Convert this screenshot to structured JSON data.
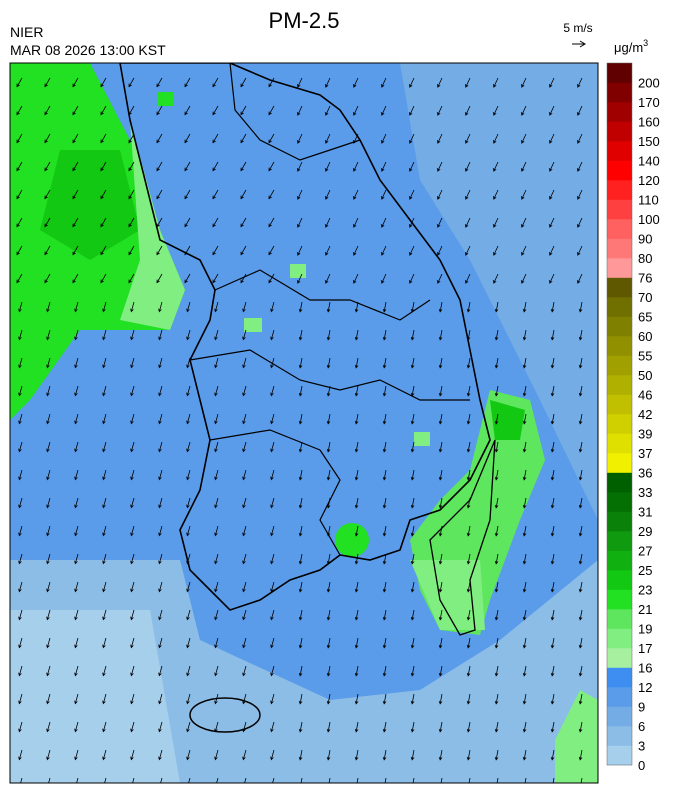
{
  "header": {
    "org": "NIER",
    "datetime": "MAR 08 2026 13:00 KST",
    "title": "PM-2.5",
    "wind_scale": "5 m/s",
    "unit": {
      "base": "μg/m",
      "exponent": "3"
    }
  },
  "colorbar": {
    "labels": [
      0,
      3,
      6,
      9,
      12,
      16,
      17,
      19,
      21,
      23,
      25,
      27,
      29,
      31,
      33,
      36,
      37,
      39,
      42,
      46,
      50,
      55,
      60,
      65,
      70,
      76,
      80,
      90,
      100,
      110,
      120,
      140,
      150,
      160,
      170,
      200
    ],
    "colors": [
      "#a6cfec",
      "#8cbde6",
      "#74ade6",
      "#5a9cea",
      "#3d8ef0",
      "#a6f0a0",
      "#80ee80",
      "#5ee65e",
      "#22e022",
      "#12c812",
      "#10b010",
      "#109a10",
      "#0a820a",
      "#047004",
      "#006000",
      "#f0f000",
      "#e0e000",
      "#d0d000",
      "#c0c000",
      "#b0b000",
      "#a0a000",
      "#909000",
      "#808000",
      "#707000",
      "#605800",
      "#ff9898",
      "#ff7878",
      "#ff6060",
      "#ff4040",
      "#ff2020",
      "#ff0000",
      "#e00000",
      "#c00000",
      "#a00000",
      "#800000",
      "#600000"
    ]
  }
}
